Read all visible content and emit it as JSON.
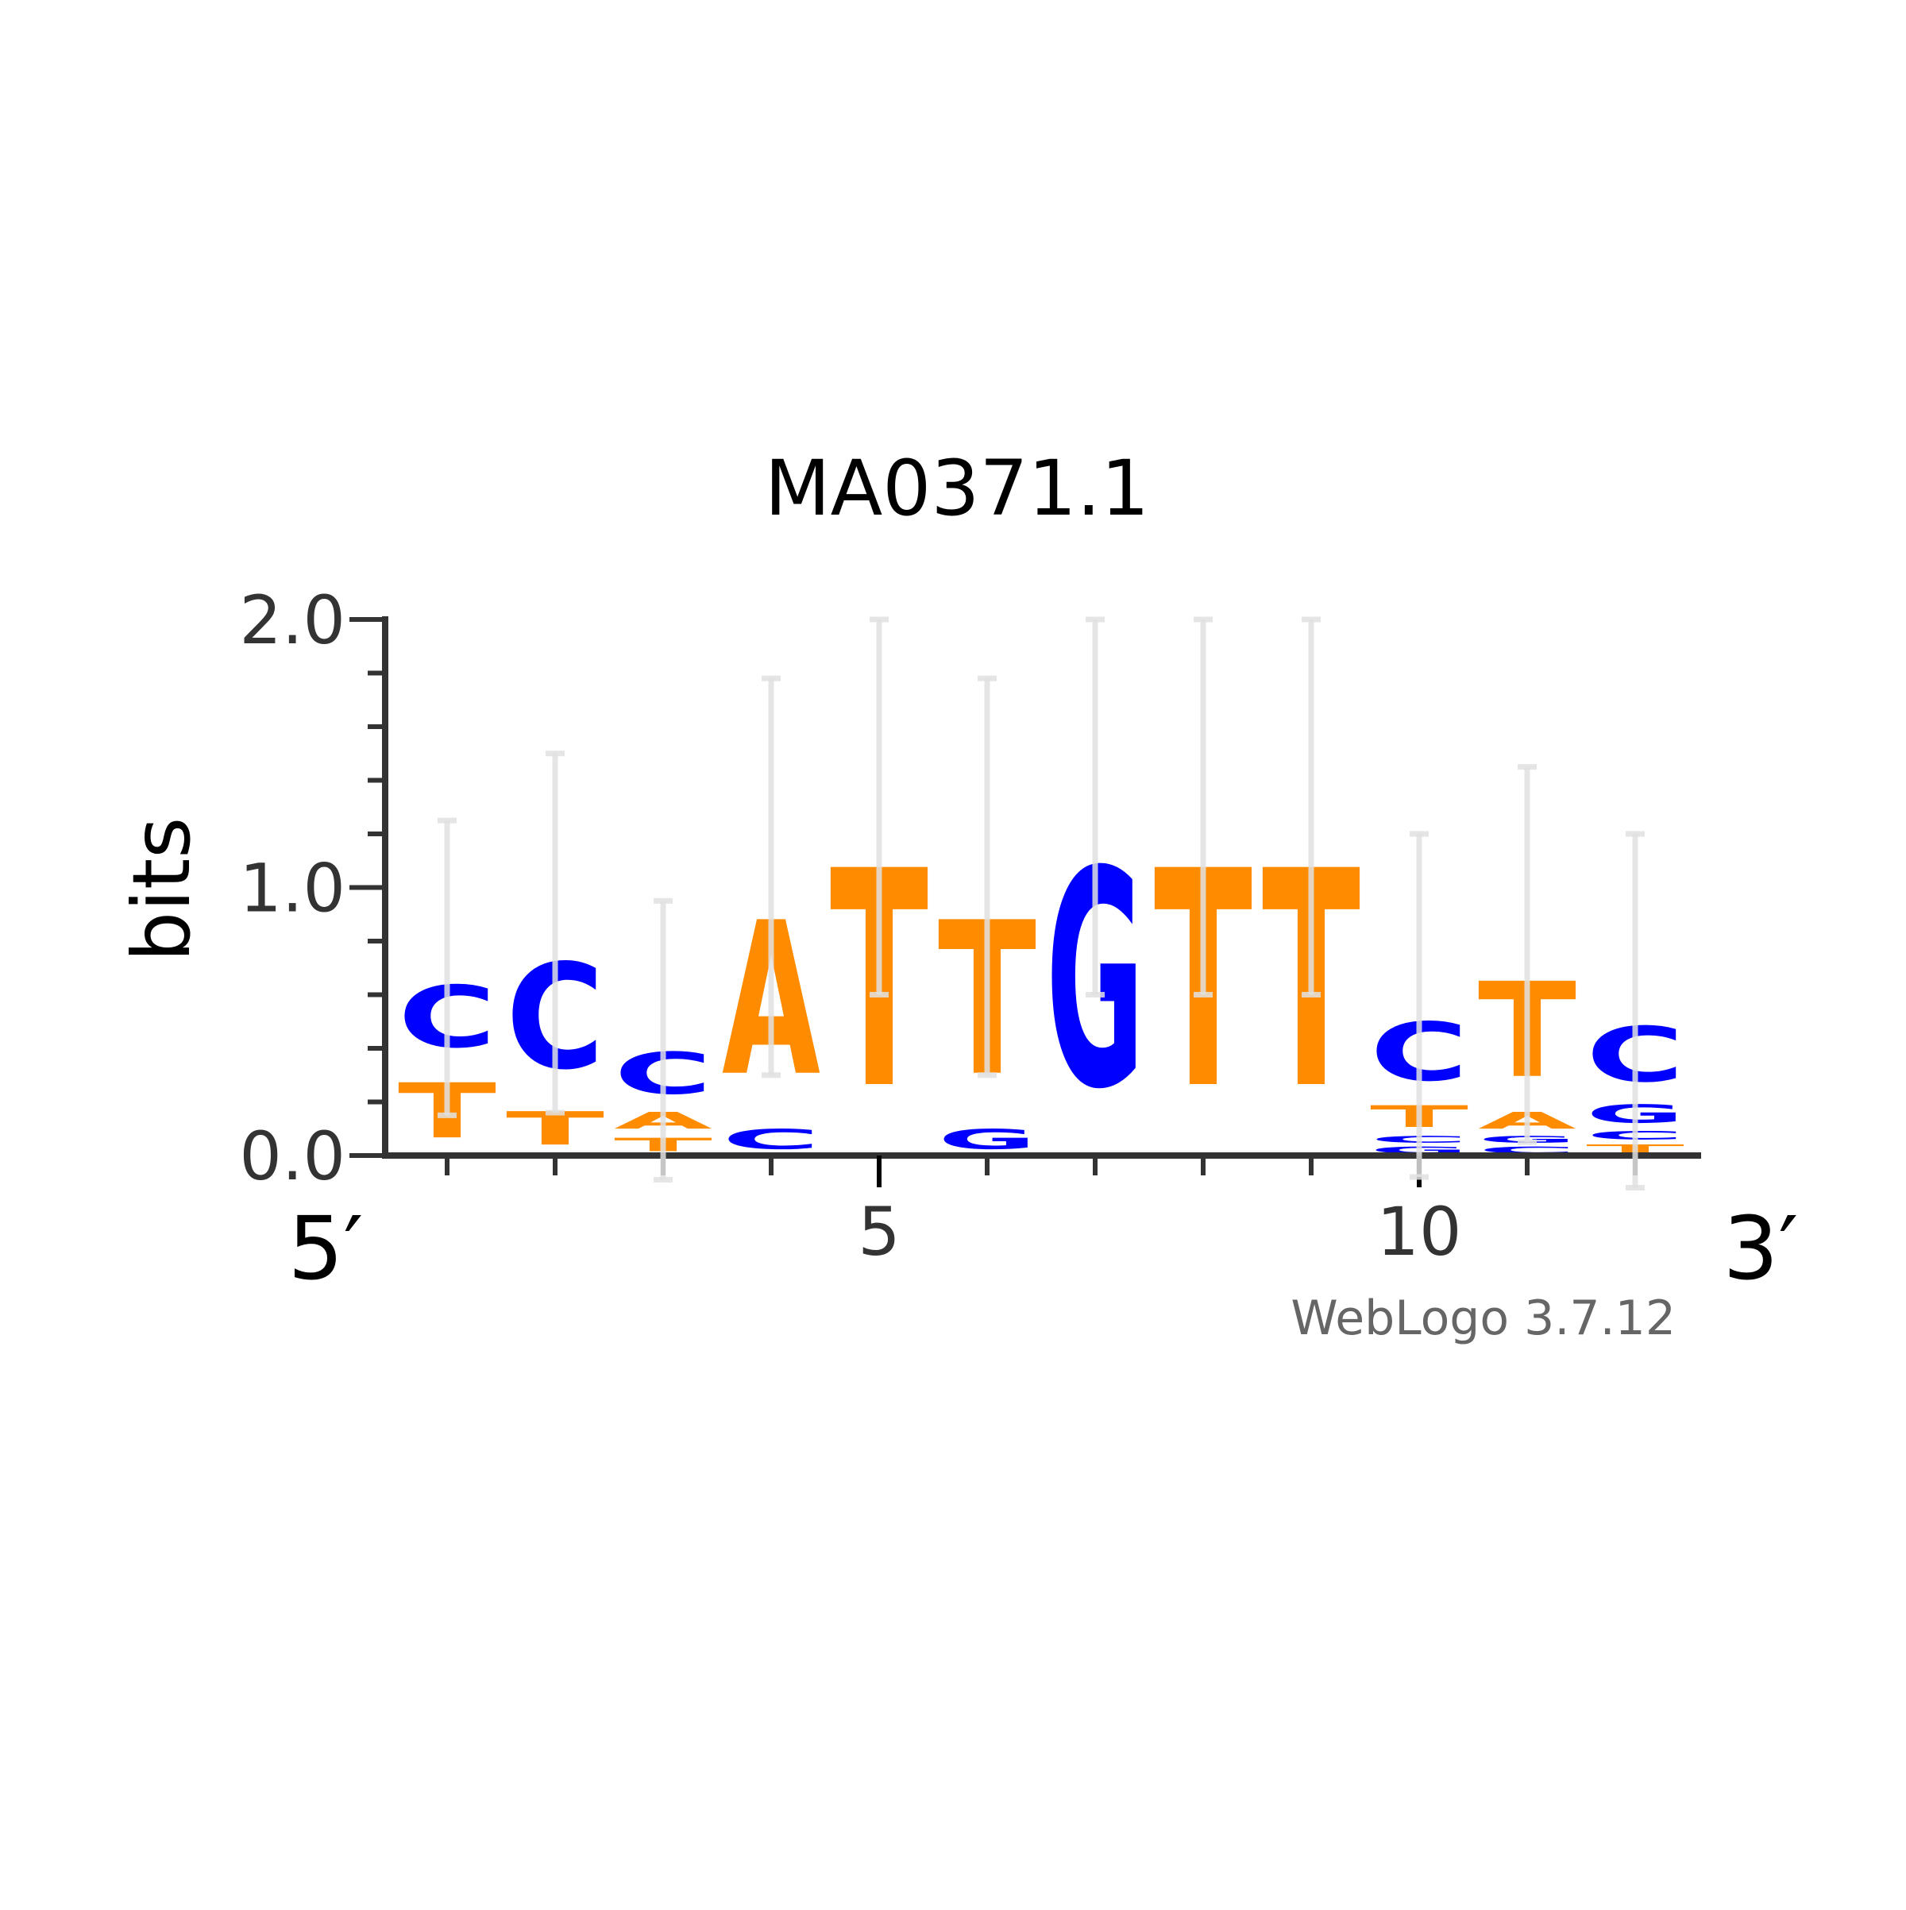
{
  "title": "MA0371.1",
  "footer": "WebLogo 3.7.12",
  "colors": {
    "A": "#ff8c00",
    "T": "#ff8c00",
    "C": "#0000ff",
    "G": "#0000ff",
    "axis": "#333333",
    "errorbar": "#e0e0e0"
  },
  "chart_data": {
    "type": "sequence-logo",
    "title": "MA0371.1",
    "ylabel": "bits",
    "ylim": [
      0,
      2.0
    ],
    "yticks": [
      "0.0",
      "1.0",
      "2.0"
    ],
    "xticks": [
      {
        "pos": 5,
        "label": "5"
      },
      {
        "pos": 10,
        "label": "10"
      }
    ],
    "left_end_label": "5′",
    "right_end_label": "3′",
    "positions": [
      {
        "pos": 1,
        "stack": [
          {
            "letter": "T",
            "bits": 0.33
          },
          {
            "letter": "C",
            "bits": 0.37
          }
        ],
        "error": 1.25
      },
      {
        "pos": 2,
        "stack": [
          {
            "letter": "T",
            "bits": 0.2
          },
          {
            "letter": "C",
            "bits": 0.63
          }
        ],
        "error": 1.5
      },
      {
        "pos": 3,
        "stack": [
          {
            "letter": "T",
            "bits": 0.08
          },
          {
            "letter": "A",
            "bits": 0.1
          },
          {
            "letter": "C",
            "bits": 0.25
          }
        ],
        "error": 0.95
      },
      {
        "pos": 4,
        "stack": [
          {
            "letter": "C",
            "bits": 0.12
          },
          {
            "letter": "A",
            "bits": 0.92
          }
        ],
        "error": 1.78
      },
      {
        "pos": 5,
        "stack": [
          {
            "letter": "T",
            "bits": 1.3
          }
        ],
        "error": 2.0
      },
      {
        "pos": 6,
        "stack": [
          {
            "letter": "G",
            "bits": 0.12
          },
          {
            "letter": "T",
            "bits": 0.92
          }
        ],
        "error": 1.78
      },
      {
        "pos": 7,
        "stack": [
          {
            "letter": "G",
            "bits": 1.3
          }
        ],
        "error": 2.0
      },
      {
        "pos": 8,
        "stack": [
          {
            "letter": "T",
            "bits": 1.3
          }
        ],
        "error": 2.0
      },
      {
        "pos": 9,
        "stack": [
          {
            "letter": "T",
            "bits": 1.3
          }
        ],
        "error": 2.0
      },
      {
        "pos": 10,
        "stack": [
          {
            "letter": "G",
            "bits": 0.04
          },
          {
            "letter": "C",
            "bits": 0.04
          },
          {
            "letter": "T",
            "bits": 0.13
          },
          {
            "letter": "C",
            "bits": 0.35
          }
        ],
        "error": 1.2
      },
      {
        "pos": 11,
        "stack": [
          {
            "letter": "C",
            "bits": 0.04
          },
          {
            "letter": "G",
            "bits": 0.04
          },
          {
            "letter": "A",
            "bits": 0.1
          },
          {
            "letter": "T",
            "bits": 0.57
          }
        ],
        "error": 1.45
      },
      {
        "pos": 12,
        "stack": [
          {
            "letter": "T",
            "bits": 0.05
          },
          {
            "letter": "C",
            "bits": 0.05
          },
          {
            "letter": "G",
            "bits": 0.11
          },
          {
            "letter": "C",
            "bits": 0.33
          }
        ],
        "error": 1.2
      }
    ]
  }
}
